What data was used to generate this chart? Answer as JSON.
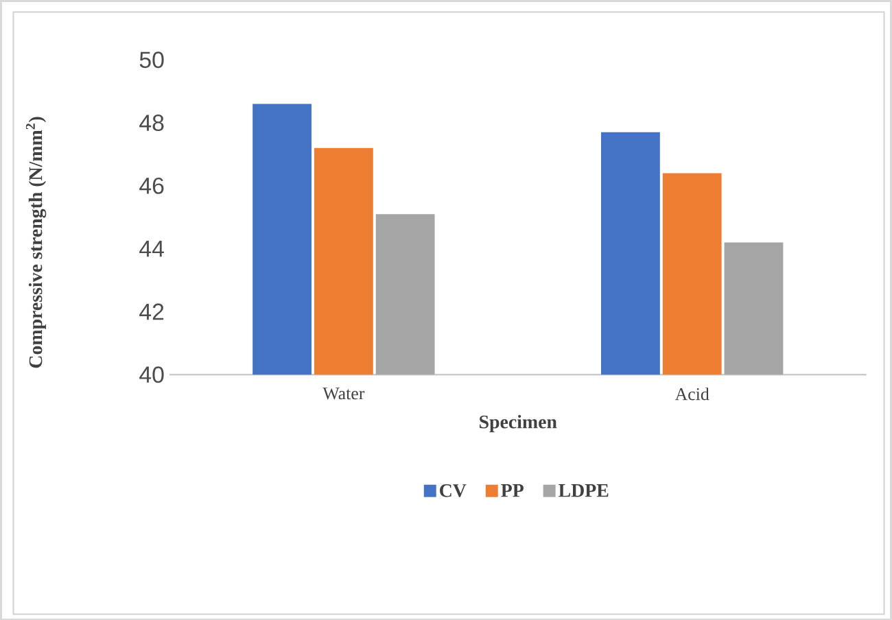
{
  "chart_data": {
    "type": "bar",
    "xlabel": "Specimen",
    "ylabel": "Compressive strength (N/mm$^{2}$)",
    "categories": [
      "Water",
      "Acid"
    ],
    "series": [
      {
        "name": "CV",
        "color": "#4472c4",
        "values": [
          48.6,
          47.7
        ]
      },
      {
        "name": "PP",
        "color": "#ed7d31",
        "values": [
          47.2,
          46.4
        ]
      },
      {
        "name": "LDPE",
        "color": "#a5a5a5",
        "values": [
          45.1,
          44.2
        ]
      }
    ],
    "ylim": [
      40,
      50
    ],
    "yticks": [
      40,
      42,
      44,
      46,
      48,
      50
    ],
    "legend": "bottom"
  }
}
